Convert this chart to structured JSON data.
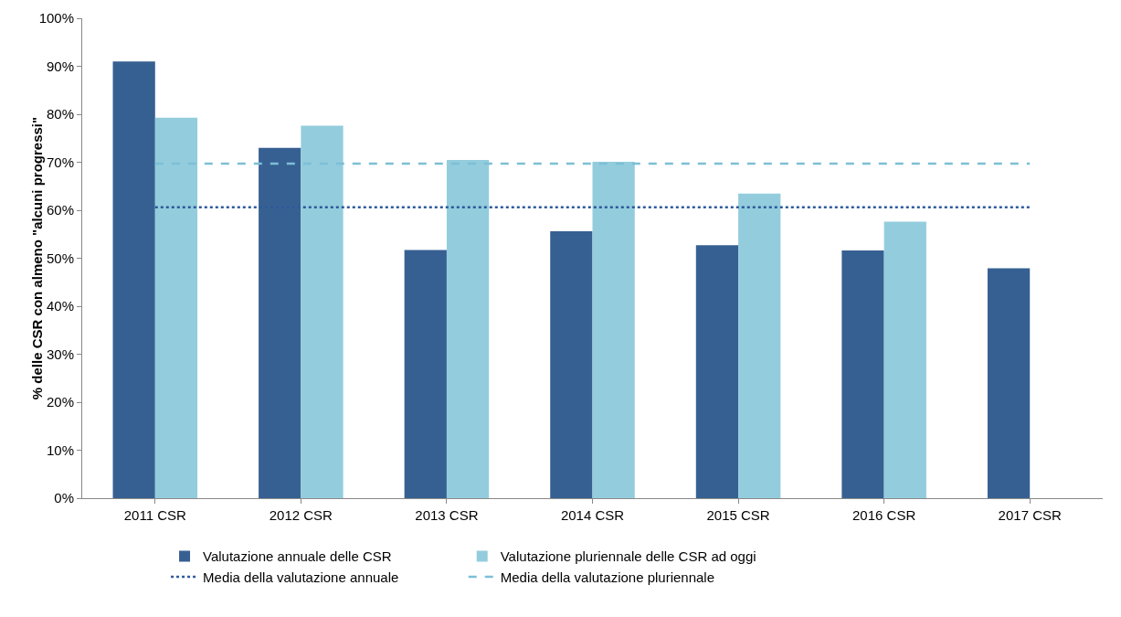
{
  "chart_data": {
    "type": "bar",
    "ylabel": "% delle CSR con almeno \"alcuni progressi\"",
    "categories": [
      "2011 CSR",
      "2012 CSR",
      "2013 CSR",
      "2014 CSR",
      "2015 CSR",
      "2016 CSR",
      "2017 CSR"
    ],
    "series": [
      {
        "name": "Valutazione annuale delle CSR",
        "color": "#376092",
        "values": [
          91.0,
          73.0,
          51.7,
          55.6,
          52.7,
          51.6,
          47.9
        ]
      },
      {
        "name": "Valutazione pluriennale delle CSR ad oggi",
        "color": "#93cddd",
        "values": [
          79.3,
          77.6,
          70.5,
          70.1,
          63.5,
          57.6,
          null
        ]
      },
      {
        "name": "Media della valutazione annuale",
        "type": "line",
        "line_style": "dotted",
        "color": "#2e5a9a",
        "values": [
          60.6,
          60.6,
          60.6,
          60.6,
          60.6,
          60.6,
          60.6
        ]
      },
      {
        "name": "Media della valutazione pluriennale",
        "type": "line",
        "line_style": "dashed",
        "color": "#7dbfd6",
        "values": [
          69.7,
          69.7,
          69.7,
          69.7,
          69.7,
          69.7,
          69.7
        ]
      }
    ],
    "ylim": [
      0,
      100
    ],
    "yticks": [
      {
        "value": 0,
        "label": "0%"
      },
      {
        "value": 10,
        "label": "10%"
      },
      {
        "value": 20,
        "label": "20%"
      },
      {
        "value": 30,
        "label": "30%"
      },
      {
        "value": 40,
        "label": "40%"
      },
      {
        "value": 50,
        "label": "50%"
      },
      {
        "value": 60,
        "label": "60%"
      },
      {
        "value": 70,
        "label": "70%"
      },
      {
        "value": 80,
        "label": "80%"
      },
      {
        "value": 90,
        "label": "90%"
      },
      {
        "value": 100,
        "label": "100%"
      }
    ],
    "grid": false,
    "legend": "bottom"
  }
}
